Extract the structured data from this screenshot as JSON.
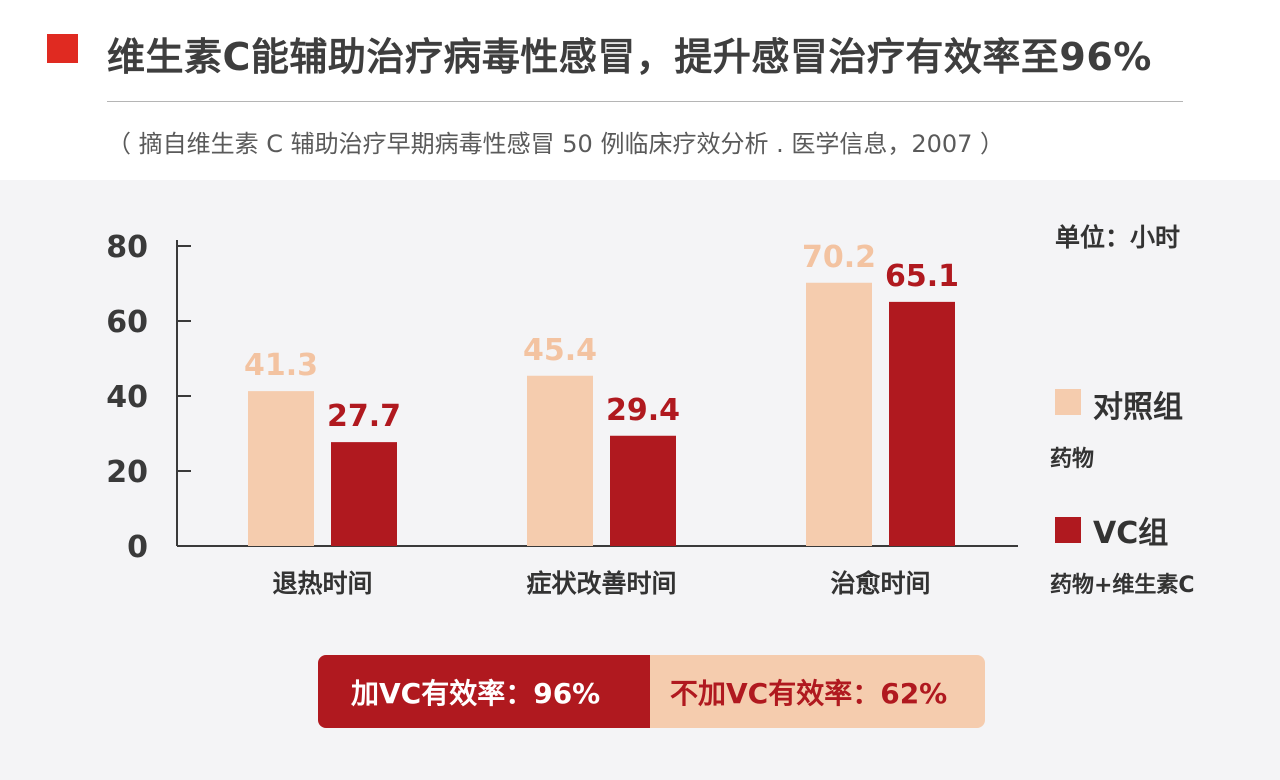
{
  "header": {
    "title": "维生素C能辅助治疗病毒性感冒，提升感冒治疗有效率至96%",
    "source": "（ 摘自维生素 C 辅助治疗早期病毒性感冒 50 例临床疗效分析 . 医学信息，2007 ）"
  },
  "chart_data": {
    "type": "bar",
    "categories": [
      "退热时间",
      "症状改善时间",
      "治愈时间"
    ],
    "series": [
      {
        "name": "对照组",
        "values": [
          41.3,
          45.4,
          70.2
        ],
        "color": "#f5ccae",
        "label_color": "#f3c3a1"
      },
      {
        "name": "VC组",
        "values": [
          27.7,
          29.4,
          65.1
        ],
        "color": "#b0191f",
        "label_color": "#b0191f"
      }
    ],
    "ylim": [
      0,
      80
    ],
    "yticks": [
      0,
      20,
      40,
      60,
      80
    ],
    "unit": "单位：小时",
    "legend_position": "right",
    "grid": false
  },
  "legend": [
    {
      "label": "对照组",
      "desc": "药物",
      "color": "#f5ccae"
    },
    {
      "label": "VC组",
      "desc": "药物+维生素C",
      "color": "#b0191f"
    }
  ],
  "efficacy": {
    "with_vc": "加VC有效率：96%",
    "without_vc": "不加VC有效率：62%"
  },
  "colors": {
    "accent": "#e02a21",
    "dark_red": "#b0191f",
    "peach": "#f5ccae",
    "panel": "#f4f4f6"
  }
}
